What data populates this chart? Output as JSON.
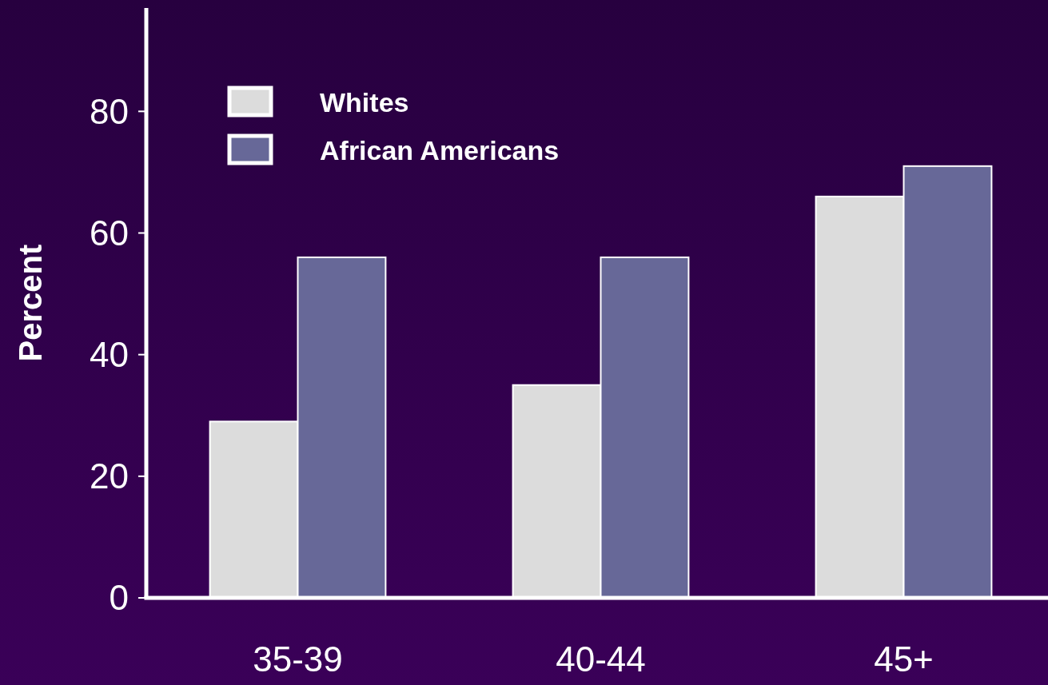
{
  "chart_data": {
    "type": "bar",
    "ylabel": "Percent",
    "categories": [
      "35-39",
      "40-44",
      "45+"
    ],
    "series": [
      {
        "name": "Whites",
        "color": "#dcdcdc",
        "values": [
          29,
          35,
          66
        ]
      },
      {
        "name": "African Americans",
        "color": "#676898",
        "values": [
          56,
          56,
          71
        ]
      }
    ],
    "ylim": [
      0,
      97
    ],
    "yticks": [
      0,
      20,
      40,
      60,
      80
    ],
    "grid": false,
    "legend": "top left"
  }
}
